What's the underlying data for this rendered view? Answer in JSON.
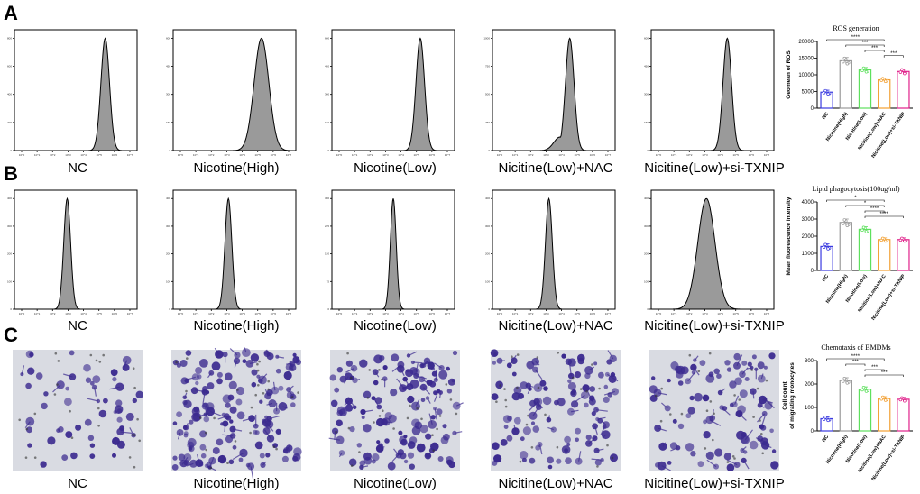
{
  "panels": {
    "a_letter": "A",
    "b_letter": "B",
    "c_letter": "C"
  },
  "conditions": [
    "NC",
    "Nicotine(High)",
    "Nicotine(Low)",
    "Nicitine(Low)+NAC",
    "Nicitine(Low)+si-TXNIP"
  ],
  "colors": {
    "hist_fill": "#9a9a9a",
    "stain": "#3b2a8f",
    "bg_image": "#d9dbe2",
    "NC": "#3a3ae0",
    "Nicotine(High)": "#9a9a9a",
    "Nicotine(Low)": "#5ee05e",
    "Nicitine(Low)+NAC": "#f2a033",
    "Nicitine(Low)+si-TXNIP": "#e0208a"
  },
  "histograms": {
    "row_a_peaks": [
      0.74,
      0.72,
      0.72,
      0.63,
      0.62
    ],
    "row_a_widths": [
      0.035,
      0.06,
      0.035,
      0.035,
      0.035
    ],
    "row_a_ymax": [
      800,
      600,
      600,
      1000,
      600
    ],
    "row_b_peaks": [
      0.43,
      0.45,
      0.5,
      0.46,
      0.45
    ],
    "row_b_widths": [
      0.028,
      0.028,
      0.024,
      0.028,
      0.07
    ],
    "row_b_ymax": [
      400,
      400,
      300,
      400,
      400
    ],
    "x_tick_labels": [
      "10^0",
      "10^1",
      "10^2",
      "10^3",
      "10^4",
      "10^5",
      "10^6",
      "10^7"
    ]
  },
  "chart_data": [
    {
      "type": "bar",
      "title": "ROS generation",
      "ylabel": "Geomean of ROS",
      "categories": [
        "NC",
        "Nicotine(High)",
        "Nicotine(Low)",
        "Nicitine(Low)+NAC",
        "Nicitine(Low)+si-TXNIP"
      ],
      "values": [
        4800,
        14200,
        11500,
        8500,
        11000
      ],
      "errors": [
        600,
        1000,
        700,
        500,
        700
      ],
      "ylim": [
        0,
        20000
      ],
      "yticks": [
        "0",
        "5000",
        "10000",
        "15000",
        "20000"
      ],
      "significance": [
        {
          "from": 0,
          "to": 3,
          "label": "****"
        },
        {
          "from": 1,
          "to": 3,
          "label": "***"
        },
        {
          "from": 2,
          "to": 3,
          "label": "***"
        },
        {
          "from": 3,
          "to": 4,
          "label": "***"
        }
      ]
    },
    {
      "type": "bar",
      "title": "Lipid phagocytosis(100ug/ml)",
      "ylabel": "Mean fluorescence intensity",
      "categories": [
        "NC",
        "Nicotine(High)",
        "Nicotine(Low)",
        "Nicitine(Low)+NAC",
        "Nicitine(Low)+si-TXNIP"
      ],
      "values": [
        1400,
        2800,
        2400,
        1800,
        1800
      ],
      "errors": [
        150,
        200,
        150,
        100,
        100
      ],
      "ylim": [
        0,
        4000
      ],
      "yticks": [
        "0",
        "1000",
        "2000",
        "3000",
        "4000"
      ],
      "significance": [
        {
          "from": 0,
          "to": 3,
          "label": "*"
        },
        {
          "from": 1,
          "to": 3,
          "label": "*"
        },
        {
          "from": 2,
          "to": 3,
          "label": "****"
        },
        {
          "from": 2,
          "to": 4,
          "label": "****"
        }
      ]
    },
    {
      "type": "bar",
      "title": "Chemotaxis of BMDMs",
      "ylabel": "Cell count",
      "ylabel2": "of migrating monocytes",
      "categories": [
        "NC",
        "Nicotine(High)",
        "Nicotine(Low)",
        "Nicitine(Low)+NAC",
        "Nicitine(Low)+si-TXNIP"
      ],
      "values": [
        52,
        215,
        178,
        138,
        135
      ],
      "errors": [
        8,
        12,
        10,
        8,
        8
      ],
      "ylim": [
        0,
        300
      ],
      "yticks": [
        "0",
        "100",
        "200",
        "300"
      ],
      "significance": [
        {
          "from": 0,
          "to": 3,
          "label": "****"
        },
        {
          "from": 1,
          "to": 2,
          "label": "***"
        },
        {
          "from": 2,
          "to": 3,
          "label": "***"
        },
        {
          "from": 2,
          "to": 4,
          "label": "***"
        }
      ]
    }
  ]
}
